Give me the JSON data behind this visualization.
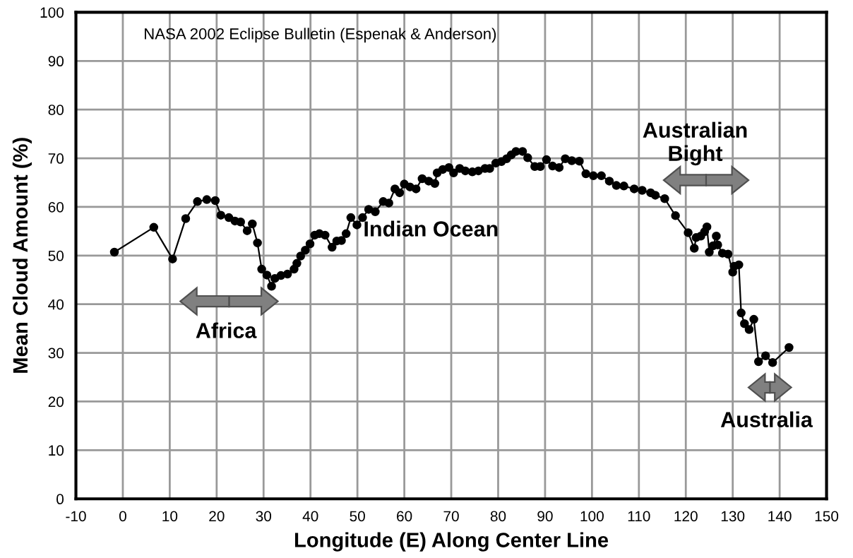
{
  "chart_data": {
    "type": "line",
    "xlabel": "Longitude (E) Along Center Line",
    "ylabel": "Mean Cloud Amount (%)",
    "annotations": [
      "NASA 2002 Eclipse Bulletin (Espenak & Anderson)",
      "Africa",
      "Indian Ocean",
      "Australian\nBight",
      "Australia"
    ],
    "xlim": [
      -10,
      150
    ],
    "xticks": [
      -10,
      0,
      10,
      20,
      30,
      40,
      50,
      60,
      70,
      80,
      90,
      100,
      110,
      120,
      130,
      140,
      150
    ],
    "ylim": [
      0,
      100
    ],
    "yticks": [
      0,
      10,
      20,
      30,
      40,
      50,
      60,
      70,
      80,
      90,
      100
    ],
    "grid": true,
    "legend": false,
    "marker": "circle",
    "line_style": "solid",
    "series": [
      {
        "color": "#000000",
        "x": [
          -1.8,
          6.6,
          10.6,
          13.4,
          15.9,
          17.9,
          19.7,
          20.9,
          22.6,
          23.9,
          25.1,
          26.5,
          27.6,
          28.7,
          29.6,
          30.7,
          31.7,
          32.4,
          33.7,
          35.1,
          36.5,
          37.1,
          37.9,
          38.9,
          39.9,
          40.9,
          41.9,
          43.1,
          44.6,
          45.6,
          46.6,
          47.6,
          48.6,
          49.9,
          51.1,
          52.4,
          53.8,
          55.5,
          56.7,
          58.0,
          59.0,
          60.0,
          61.2,
          62.5,
          63.8,
          65.2,
          66.5,
          67.0,
          68.2,
          69.5,
          70.5,
          71.8,
          73.0,
          74.5,
          75.8,
          77.2,
          78.2,
          79.5,
          80.7,
          81.8,
          82.8,
          83.8,
          85.2,
          86.3,
          87.8,
          89.0,
          90.3,
          91.6,
          93.0,
          94.3,
          95.7,
          97.3,
          98.7,
          100.3,
          102.0,
          103.7,
          105.2,
          106.8,
          109.0,
          110.7,
          112.5,
          113.5,
          115.5,
          117.8,
          120.5,
          121.8,
          122.2,
          123.2,
          124.0,
          124.5,
          125.0,
          125.8,
          126.5,
          126.8,
          127.8,
          129.0,
          130.0,
          130.3,
          131.3,
          131.8,
          132.5,
          133.5,
          134.5,
          135.5,
          137.0,
          138.5,
          142.0
        ],
        "values": [
          50.7,
          55.8,
          49.3,
          57.6,
          61.1,
          61.5,
          61.3,
          58.3,
          57.8,
          57.1,
          56.9,
          55.1,
          56.5,
          52.6,
          47.2,
          46.0,
          43.7,
          45.3,
          45.9,
          46.2,
          47.2,
          48.4,
          49.9,
          51.1,
          52.4,
          54.2,
          54.5,
          54.2,
          51.7,
          53.0,
          53.1,
          54.5,
          57.8,
          56.3,
          57.8,
          59.5,
          59.0,
          61.1,
          60.8,
          63.7,
          62.9,
          64.7,
          64.1,
          63.7,
          65.8,
          65.3,
          64.8,
          67.0,
          67.7,
          68.1,
          67.0,
          67.9,
          67.4,
          67.2,
          67.4,
          67.9,
          67.9,
          69.0,
          69.3,
          69.9,
          70.7,
          71.4,
          71.4,
          70.1,
          68.3,
          68.3,
          69.7,
          68.4,
          68.1,
          69.9,
          69.5,
          69.4,
          66.8,
          66.4,
          66.4,
          65.3,
          64.4,
          64.3,
          63.7,
          63.4,
          62.9,
          62.4,
          61.7,
          58.2,
          54.7,
          51.5,
          53.7,
          54.0,
          54.9,
          55.9,
          50.7,
          52.0,
          54.0,
          52.2,
          50.5,
          50.3,
          46.6,
          47.8,
          48.1,
          38.2,
          36.0,
          34.8,
          36.9,
          28.2,
          29.4,
          28.0,
          31.1
        ]
      }
    ]
  }
}
